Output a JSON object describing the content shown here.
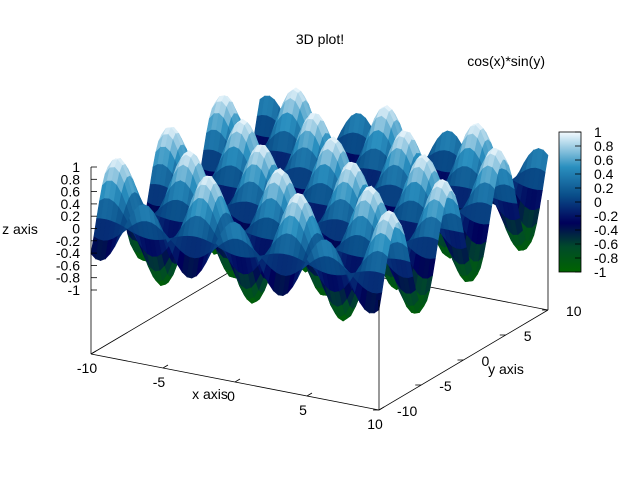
{
  "chart_data": {
    "type": "surface",
    "function": "cos(x)*sin(y)",
    "title": "3D plot!",
    "legend": [
      "cos(x)*sin(y)"
    ],
    "xlabel": "x axis",
    "ylabel": "y axis",
    "zlabel": "z axis",
    "xlim": [
      -10,
      10
    ],
    "ylim": [
      -10,
      10
    ],
    "zlim": [
      -1,
      1
    ],
    "x_ticks": [
      "-10",
      "-5",
      "0",
      "5",
      "10"
    ],
    "y_ticks": [
      "-10",
      "-5",
      "0",
      "5",
      "10"
    ],
    "z_ticks": [
      "1",
      "0.8",
      "0.6",
      "0.4",
      "0.2",
      "0",
      "-0.2",
      "-0.4",
      "-0.6",
      "-0.8",
      "-1"
    ],
    "colorbar_ticks": [
      "1",
      "0.8",
      "0.6",
      "0.4",
      "0.2",
      "0",
      "-0.2",
      "-0.4",
      "-0.6",
      "-0.8",
      "-1"
    ],
    "colormap": [
      "#006400",
      "#00005a",
      "#0a6fa8",
      "#f4fbff"
    ],
    "grid": false
  }
}
